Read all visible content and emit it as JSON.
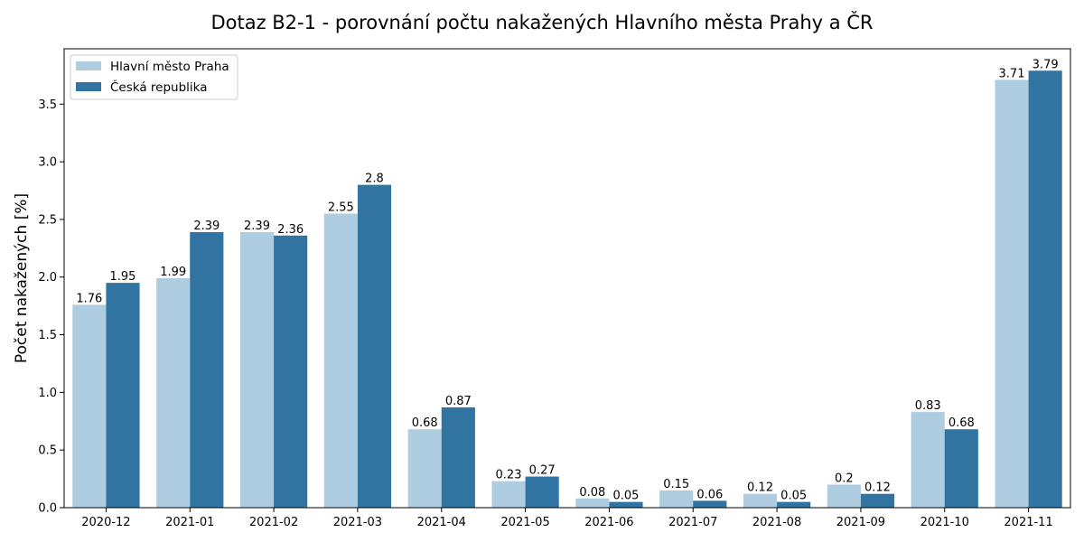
{
  "chart_data": {
    "type": "bar",
    "title": "Dotaz B2-1 - porovnání počtu nakažených Hlavního města Prahy a ČR",
    "xlabel": "",
    "ylabel": "Počet nakažených [%]",
    "ylim": [
      0,
      3.98
    ],
    "yticks": [
      "0.0",
      "0.5",
      "1.0",
      "1.5",
      "2.0",
      "2.5",
      "3.0",
      "3.5"
    ],
    "grid": false,
    "legend_position": "top-left",
    "categories": [
      "2020-12",
      "2021-01",
      "2021-02",
      "2021-03",
      "2021-04",
      "2021-05",
      "2021-06",
      "2021-07",
      "2021-08",
      "2021-09",
      "2021-10",
      "2021-11"
    ],
    "series": [
      {
        "name": "Hlavní město Praha",
        "color": "#aecde1",
        "values": [
          1.76,
          1.99,
          2.39,
          2.55,
          0.68,
          0.23,
          0.08,
          0.15,
          0.12,
          0.2,
          0.83,
          3.71
        ],
        "labels": [
          "1.76",
          "1.99",
          "2.39",
          "2.55",
          "0.68",
          "0.23",
          "0.08",
          "0.15",
          "0.12",
          "0.2",
          "0.83",
          "3.71"
        ]
      },
      {
        "name": "Česká republika",
        "color": "#3274a1",
        "values": [
          1.95,
          2.39,
          2.36,
          2.8,
          0.87,
          0.27,
          0.05,
          0.06,
          0.05,
          0.12,
          0.68,
          3.79
        ],
        "labels": [
          "1.95",
          "2.39",
          "2.36",
          "2.8",
          "0.87",
          "0.27",
          "0.05",
          "0.06",
          "0.05",
          "0.12",
          "0.68",
          "3.79"
        ]
      }
    ]
  }
}
